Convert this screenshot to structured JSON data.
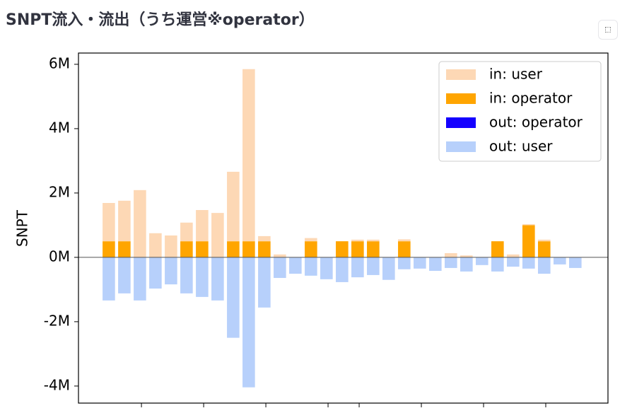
{
  "chart_data": {
    "type": "bar",
    "title": "SNPT流入・流出（うち運営※operator）",
    "ylabel": "SNPT",
    "categories": [
      null,
      null,
      null,
      null,
      null,
      null,
      null,
      null,
      null,
      null,
      null,
      null,
      null,
      null,
      null,
      null,
      null,
      null,
      null,
      null,
      null,
      null,
      null,
      null,
      null,
      null,
      null,
      null,
      null,
      null,
      null
    ],
    "xlim": [
      -1.95,
      32.1
    ],
    "xticks": [
      2.1,
      6.1,
      10.1,
      14.1,
      16.1,
      20.1,
      24.1,
      28.1
    ],
    "ylim": [
      -4530000,
      6350000
    ],
    "yticks": [
      {
        "value": -4000000,
        "label": "-4M"
      },
      {
        "value": -2000000,
        "label": "-2M"
      },
      {
        "value": 0,
        "label": "0M"
      },
      {
        "value": 2000000,
        "label": "2M"
      },
      {
        "value": 4000000,
        "label": "4M"
      },
      {
        "value": 6000000,
        "label": "6M"
      }
    ],
    "legend_position": "upper right",
    "series": [
      {
        "name": "in: user",
        "color": "#fdd8b5",
        "values": [
          1190000,
          1260000,
          2090000,
          750000,
          680000,
          580000,
          970000,
          1380000,
          2160000,
          5350000,
          160000,
          90000,
          0,
          100000,
          0,
          0,
          50000,
          50000,
          0,
          60000,
          0,
          0,
          130000,
          60000,
          0,
          0,
          90000,
          30000,
          50000,
          0,
          0
        ]
      },
      {
        "name": "in: operator",
        "color": "#ffa500",
        "values": [
          500000,
          500000,
          0,
          0,
          0,
          500000,
          500000,
          0,
          500000,
          500000,
          500000,
          0,
          0,
          500000,
          0,
          500000,
          500000,
          500000,
          0,
          500000,
          0,
          0,
          0,
          0,
          0,
          500000,
          0,
          1000000,
          500000,
          0,
          0
        ]
      },
      {
        "name": "out: operator",
        "color": "#1400ff",
        "values": [
          0,
          0,
          0,
          0,
          0,
          0,
          0,
          0,
          0,
          0,
          0,
          0,
          0,
          0,
          0,
          0,
          0,
          0,
          0,
          0,
          0,
          0,
          0,
          0,
          0,
          0,
          0,
          0,
          0,
          0,
          0
        ]
      },
      {
        "name": "out: user",
        "color": "#b7d0fb",
        "values": [
          -1340000,
          -1120000,
          -1340000,
          -970000,
          -840000,
          -1120000,
          -1230000,
          -1340000,
          -2500000,
          -4040000,
          -1560000,
          -640000,
          -510000,
          -570000,
          -680000,
          -770000,
          -620000,
          -550000,
          -700000,
          -370000,
          -350000,
          -420000,
          -330000,
          -440000,
          -240000,
          -440000,
          -290000,
          -350000,
          -510000,
          -220000,
          -330000
        ]
      }
    ]
  }
}
